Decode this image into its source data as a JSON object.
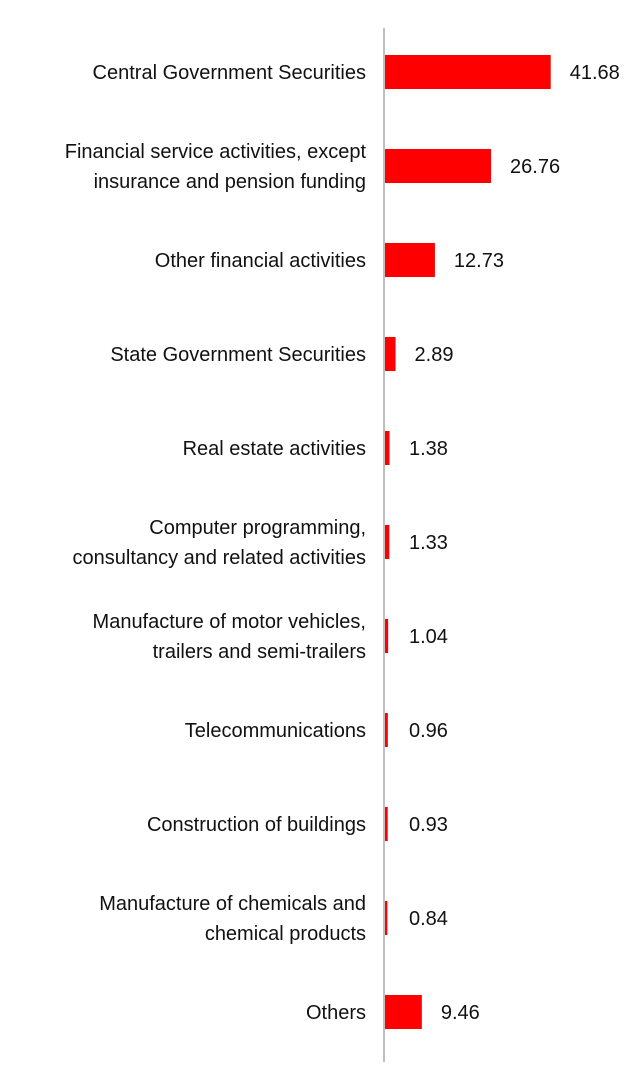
{
  "chart_data": {
    "type": "bar",
    "orientation": "horizontal",
    "title": "",
    "xlabel": "",
    "ylabel": "",
    "xlim": [
      0,
      45
    ],
    "grid": false,
    "legend": "none",
    "bar_color": "#ff0000",
    "axis_color": "#bfbfbf",
    "categories": [
      [
        "Central Government Securities"
      ],
      [
        "Financial service activities, except",
        "insurance and pension funding"
      ],
      [
        "Other financial activities"
      ],
      [
        "State Government Securities"
      ],
      [
        "Real estate activities"
      ],
      [
        "Computer programming,",
        "consultancy and related activities"
      ],
      [
        "Manufacture of motor vehicles,",
        "trailers and semi-trailers"
      ],
      [
        "Telecommunications"
      ],
      [
        "Construction of buildings"
      ],
      [
        "Manufacture of chemicals and",
        "chemical products"
      ],
      [
        "Others"
      ]
    ],
    "values": [
      41.68,
      26.76,
      12.73,
      2.89,
      1.38,
      1.33,
      1.04,
      0.96,
      0.93,
      0.84,
      9.46
    ],
    "value_labels": [
      "41.68",
      "26.76",
      "12.73",
      "2.89",
      "1.38",
      "1.33",
      "1.04",
      "0.96",
      "0.93",
      "0.84",
      "9.46"
    ]
  }
}
